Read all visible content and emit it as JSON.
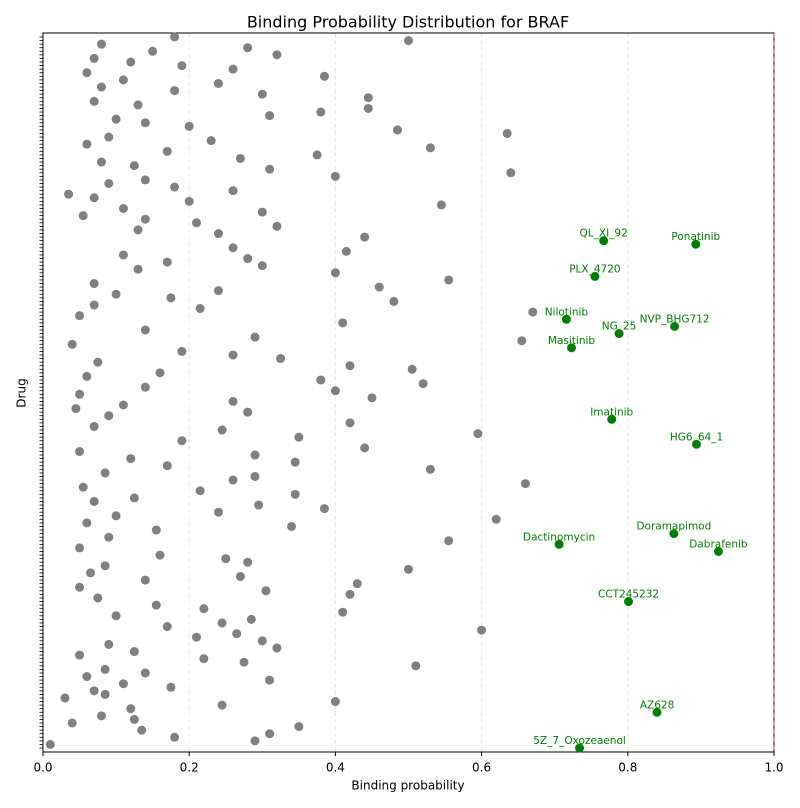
{
  "chart_data": {
    "type": "scatter",
    "title": "Binding Probability Distribution for BRAF",
    "x_label": "Binding probability",
    "y_label": "Drug",
    "color": "#808080",
    "highlight_color": "#008000",
    "threshold": 1,
    "threshold_color": "#d62728",
    "xlim": [
      0,
      1
    ],
    "xticks": [
      {
        "value": 0,
        "label": "0.0"
      },
      0.2,
      0.4,
      0.6,
      0.8,
      {
        "value": 1,
        "label": "1.0"
      }
    ],
    "grid": true,
    "categories": [
      null,
      null,
      null,
      null,
      null,
      null,
      null,
      null,
      null,
      null,
      null,
      null,
      null,
      null,
      null,
      null,
      null,
      null,
      null,
      null,
      null,
      null,
      null,
      null,
      null,
      null,
      null,
      null,
      null,
      null,
      null,
      null,
      null,
      null,
      null,
      null,
      null,
      null,
      null,
      null,
      null,
      null,
      null,
      null,
      null,
      null,
      null,
      null,
      null,
      null,
      null,
      null,
      null,
      null,
      null,
      null,
      null,
      "QL_XI_92",
      "Ponatinib",
      null,
      null,
      null,
      null,
      null,
      null,
      null,
      null,
      "PLX_4720",
      null,
      null,
      null,
      null,
      null,
      null,
      null,
      null,
      null,
      null,
      null,
      "Nilotinib",
      null,
      "NVP_BHG712",
      null,
      "NG_25",
      null,
      null,
      null,
      "Masitinib",
      null,
      null,
      null,
      null,
      null,
      null,
      null,
      null,
      null,
      null,
      null,
      null,
      null,
      null,
      null,
      null,
      null,
      null,
      null,
      "Imatinib",
      null,
      null,
      null,
      null,
      null,
      null,
      "HG6_64_1",
      null,
      null,
      null,
      null,
      null,
      null,
      null,
      null,
      null,
      null,
      null,
      null,
      null,
      null,
      null,
      null,
      null,
      null,
      null,
      null,
      null,
      null,
      null,
      null,
      "Doramapimod",
      null,
      null,
      "Dactinomycin",
      null,
      "Dabrafenib",
      null,
      null,
      null,
      null,
      null,
      null,
      null,
      null,
      null,
      null,
      null,
      null,
      null,
      "CCT245232",
      null,
      null,
      null,
      null,
      null,
      null,
      null,
      null,
      null,
      null,
      null,
      null,
      null,
      null,
      null,
      null,
      null,
      null,
      null,
      null,
      null,
      null,
      null,
      null,
      null,
      null,
      null,
      null,
      null,
      null,
      "AZ628",
      null,
      null,
      null,
      null,
      null,
      null,
      null,
      null,
      null,
      "5Z_7_Oxozeaenol"
    ],
    "values": [
      0.18,
      0.5,
      0.08,
      0.28,
      0.15,
      0.32,
      0.07,
      0.12,
      0.19,
      0.26,
      0.06,
      0.385,
      0.11,
      0.24,
      0.08,
      0.18,
      0.3,
      0.445,
      0.07,
      0.13,
      0.445,
      0.38,
      0.31,
      0.1,
      0.14,
      0.2,
      0.485,
      0.635,
      0.09,
      0.23,
      0.06,
      0.53,
      0.17,
      0.375,
      0.27,
      0.08,
      0.125,
      0.31,
      0.64,
      0.4,
      0.14,
      0.09,
      0.18,
      0.26,
      0.035,
      0.07,
      0.2,
      0.545,
      0.11,
      0.3,
      0.055,
      0.14,
      0.21,
      0.32,
      0.13,
      0.24,
      0.44,
      0.767,
      0.893,
      0.26,
      0.415,
      0.11,
      0.28,
      0.17,
      0.3,
      0.13,
      0.4,
      0.755,
      0.555,
      0.07,
      0.46,
      0.24,
      0.1,
      0.175,
      0.48,
      0.07,
      0.215,
      0.67,
      0.05,
      0.716,
      0.41,
      0.864,
      0.14,
      0.788,
      0.29,
      0.655,
      0.04,
      0.723,
      0.19,
      0.26,
      0.325,
      0.075,
      0.42,
      0.505,
      0.16,
      0.06,
      0.38,
      0.52,
      0.14,
      0.4,
      0.05,
      0.45,
      0.26,
      0.11,
      0.045,
      0.28,
      0.09,
      0.778,
      0.42,
      0.07,
      0.245,
      0.595,
      0.35,
      0.19,
      0.894,
      0.44,
      0.05,
      0.29,
      0.12,
      0.345,
      0.17,
      0.53,
      0.085,
      0.29,
      0.26,
      0.66,
      0.055,
      0.215,
      0.345,
      0.125,
      0.07,
      0.295,
      0.385,
      0.24,
      0.1,
      0.62,
      0.06,
      0.34,
      0.155,
      0.863,
      0.09,
      0.555,
      0.706,
      0.05,
      0.924,
      0.16,
      0.25,
      0.28,
      0.085,
      0.5,
      0.065,
      0.27,
      0.14,
      0.43,
      0.05,
      0.305,
      0.42,
      0.075,
      0.801,
      0.155,
      0.22,
      0.41,
      0.1,
      0.285,
      0.245,
      0.17,
      0.6,
      0.265,
      0.21,
      0.3,
      0.09,
      0.32,
      0.125,
      0.05,
      0.22,
      0.275,
      0.51,
      0.085,
      0.14,
      0.06,
      0.31,
      0.11,
      0.175,
      0.07,
      0.085,
      0.03,
      0.4,
      0.245,
      0.12,
      0.84,
      0.08,
      0.125,
      0.04,
      0.35,
      0.135,
      0.31,
      0.18,
      0.29,
      0.01,
      0.734
    ]
  }
}
